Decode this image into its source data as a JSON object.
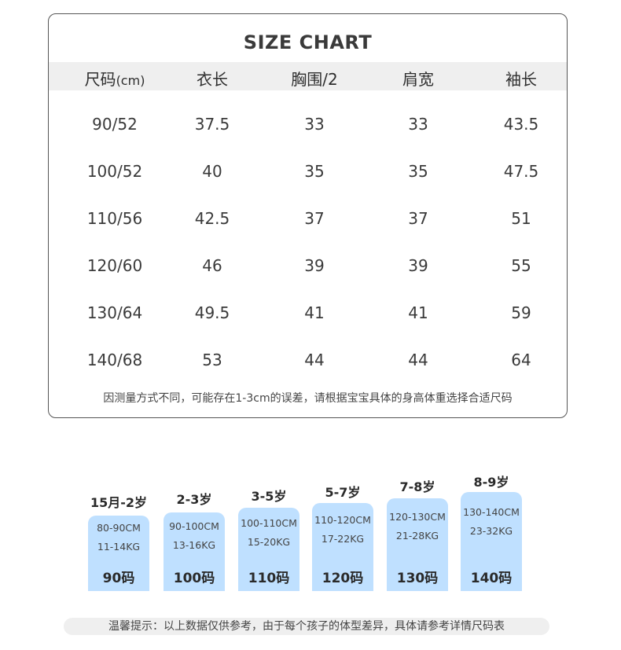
{
  "chart": {
    "title": "SIZE CHART",
    "headers": {
      "size": "尺码",
      "size_unit": "(cm)",
      "length": "衣长",
      "chest": "胸围/2",
      "shoulder": "肩宽",
      "sleeve": "袖长"
    },
    "rows": [
      [
        "90/52",
        "37.5",
        "33",
        "33",
        "43.5"
      ],
      [
        "100/52",
        "40",
        "35",
        "35",
        "47.5"
      ],
      [
        "110/56",
        "42.5",
        "37",
        "37",
        "51"
      ],
      [
        "120/60",
        "46",
        "39",
        "39",
        "55"
      ],
      [
        "130/64",
        "49.5",
        "41",
        "41",
        "59"
      ],
      [
        "140/68",
        "53",
        "44",
        "44",
        "64"
      ]
    ],
    "note": "因测量方式不同，可能存在1-3cm的误差，请根据宝宝具体的身高体重选择合适尺码"
  },
  "size_guide": [
    {
      "age": "15月-2岁",
      "height": "80-90CM",
      "weight": "11-14KG",
      "code": "90码"
    },
    {
      "age": "2-3岁",
      "height": "90-100CM",
      "weight": "13-16KG",
      "code": "100码"
    },
    {
      "age": "3-5岁",
      "height": "100-110CM",
      "weight": "15-20KG",
      "code": "110码"
    },
    {
      "age": "5-7岁",
      "height": "110-120CM",
      "weight": "17-22KG",
      "code": "120码"
    },
    {
      "age": "7-8岁",
      "height": "120-130CM",
      "weight": "21-28KG",
      "code": "130码"
    },
    {
      "age": "8-9岁",
      "height": "130-140CM",
      "weight": "23-32KG",
      "code": "140码"
    }
  ],
  "tip": "温馨提示：以上数据仅供参考，由于每个孩子的体型差异，具体请参考详情尺码表",
  "colors": {
    "box": "#bfe0ff",
    "header_bg": "#efefef"
  }
}
